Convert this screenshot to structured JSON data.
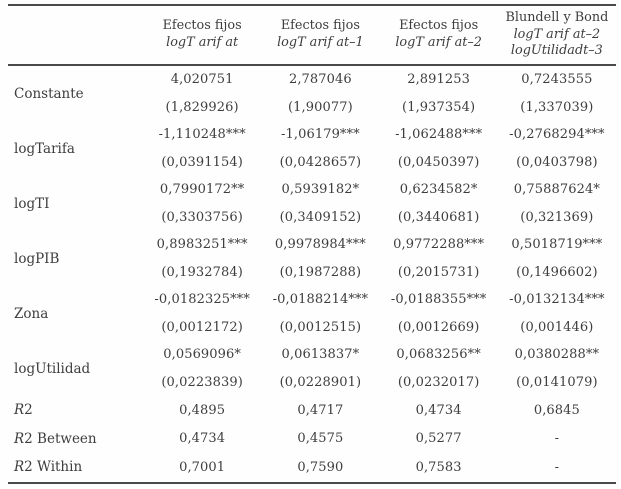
{
  "table": {
    "header": {
      "corner": "",
      "columns": [
        {
          "lines": [
            "Efectos fijos",
            "logT arif at"
          ]
        },
        {
          "lines": [
            "Efectos fijos",
            "logT arif at–1"
          ]
        },
        {
          "lines": [
            "Efectos fijos",
            "logT arif at–2"
          ]
        },
        {
          "lines": [
            "Blundell y Bond",
            "logT arif at–2",
            "logUtilidadt–3"
          ]
        }
      ]
    },
    "coefficient_rows": [
      {
        "label": "Constante",
        "estimates": [
          "4,020751",
          "2,787046",
          "2,891253",
          "0,7243555"
        ],
        "std_errors": [
          "(1,829926)",
          "(1,90077)",
          "(1,937354)",
          "(1,337039)"
        ]
      },
      {
        "label": "logTarifa",
        "estimates": [
          "-1,110248***",
          "-1,06179***",
          "-1,062488***",
          "-0,2768294***"
        ],
        "std_errors": [
          "(0,0391154)",
          "(0,0428657)",
          "(0,0450397)",
          "(0,0403798)"
        ]
      },
      {
        "label": "logTI",
        "estimates": [
          "0,7990172**",
          "0,5939182*",
          "0,6234582*",
          "0,75887624*"
        ],
        "std_errors": [
          "(0,3303756)",
          "(0,3409152)",
          "(0,3440681)",
          "(0,321369)"
        ]
      },
      {
        "label": "logPIB",
        "estimates": [
          "0,8983251***",
          "0,9978984***",
          "0,9772288***",
          "0,5018719***"
        ],
        "std_errors": [
          "(0,1932784)",
          "(0,1987288)",
          "(0,2015731)",
          "(0,1496602)"
        ]
      },
      {
        "label": "Zona",
        "estimates": [
          "-0,0182325***",
          "-0,0188214***",
          "-0,0188355***",
          "-0,0132134***"
        ],
        "std_errors": [
          "(0,0012172)",
          "(0,0012515)",
          "(0,0012669)",
          "(0,001446)"
        ]
      },
      {
        "label": "logUtilidad",
        "estimates": [
          "0,0569096*",
          "0,0613837*",
          "0,0683256**",
          "0,0380288**"
        ],
        "std_errors": [
          "(0,0223839)",
          "(0,0228901)",
          "(0,0232017)",
          "(0,0141079)"
        ]
      }
    ],
    "stat_rows": [
      {
        "label_italic": "R",
        "label_rest": "2",
        "values": [
          "0,4895",
          "0,4717",
          "0,4734",
          "0,6845"
        ]
      },
      {
        "label_italic": "R",
        "label_rest": "2 Between",
        "values": [
          "0,4734",
          "0,4575",
          "0,5277",
          "-"
        ]
      },
      {
        "label_italic": "R",
        "label_rest": "2 Within",
        "values": [
          "0,7001",
          "0,7590",
          "0,7583",
          "-"
        ]
      }
    ],
    "colors": {
      "text": "#3d3d3d",
      "rule": "#4a4a4a",
      "background": "#fefefe"
    }
  }
}
